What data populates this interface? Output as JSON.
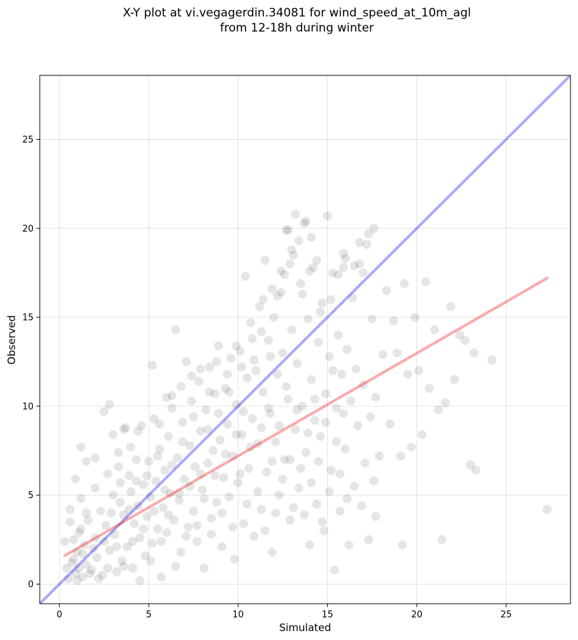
{
  "title": {
    "line1": "X-Y plot at vi.vegagerdin.34081 for wind_speed_at_10m_agl",
    "line2": "from 12-18h during winter"
  },
  "colors": {
    "points": "#000000",
    "identity_line": "#0000ee",
    "regression_line": "#ee0000",
    "grid": "#b0b0b0"
  },
  "chart_data": {
    "type": "scatter",
    "title": "X-Y plot at vi.vegagerdin.34081 for wind_speed_at_10m_agl from 12-18h during winter",
    "xlabel": "Simulated",
    "ylabel": "Observed",
    "xlim": [
      -1.1,
      28.6
    ],
    "ylim": [
      -1.1,
      28.6
    ],
    "x_ticks": [
      0,
      5,
      10,
      15,
      20,
      25
    ],
    "y_ticks": [
      0,
      5,
      10,
      15,
      20,
      25
    ],
    "x_tick_labels": [
      "0",
      "5",
      "10",
      "15",
      "20",
      "25"
    ],
    "y_tick_labels": [
      "0",
      "5",
      "10",
      "15",
      "20",
      "25"
    ],
    "grid": true,
    "legend": "none",
    "lines": [
      {
        "kind": "identity",
        "x": [
          -1.1,
          28.6
        ],
        "y": [
          -1.1,
          28.6
        ]
      },
      {
        "kind": "regression",
        "x": [
          0.3,
          27.3
        ],
        "y": [
          1.6,
          17.2
        ]
      }
    ],
    "points": [
      [
        0.5,
        0.3
      ],
      [
        0.7,
        1.2
      ],
      [
        0.8,
        2.5
      ],
      [
        0.9,
        0.6
      ],
      [
        1.0,
        1.8
      ],
      [
        1.1,
        0.9
      ],
      [
        1.2,
        3.1
      ],
      [
        1.3,
        0.4
      ],
      [
        1.4,
        2.2
      ],
      [
        1.5,
        1.1
      ],
      [
        0.6,
        4.2
      ],
      [
        0.9,
        5.9
      ],
      [
        1.2,
        4.8
      ],
      [
        1.6,
        3.6
      ],
      [
        1.8,
        0.8
      ],
      [
        2.0,
        2.6
      ],
      [
        2.1,
        1.5
      ],
      [
        2.3,
        4.1
      ],
      [
        2.4,
        0.5
      ],
      [
        2.6,
        3.3
      ],
      [
        2.7,
        6.2
      ],
      [
        2.8,
        1.9
      ],
      [
        3.0,
        5.0
      ],
      [
        3.1,
        2.8
      ],
      [
        3.2,
        0.7
      ],
      [
        3.3,
        7.4
      ],
      [
        3.4,
        4.6
      ],
      [
        3.5,
        1.3
      ],
      [
        3.6,
        3.9
      ],
      [
        3.7,
        8.8
      ],
      [
        3.8,
        2.1
      ],
      [
        3.9,
        6.1
      ],
      [
        4.0,
        5.2
      ],
      [
        4.1,
        0.9
      ],
      [
        4.2,
        3.4
      ],
      [
        4.3,
        7.0
      ],
      [
        4.4,
        4.4
      ],
      [
        4.5,
        2.6
      ],
      [
        4.6,
        8.9
      ],
      [
        4.7,
        5.6
      ],
      [
        4.8,
        1.6
      ],
      [
        4.9,
        3.8
      ],
      [
        5.0,
        6.9
      ],
      [
        5.1,
        4.9
      ],
      [
        5.2,
        2.3
      ],
      [
        5.3,
        9.3
      ],
      [
        5.4,
        5.8
      ],
      [
        5.5,
        3.1
      ],
      [
        5.6,
        7.6
      ],
      [
        5.7,
        0.4
      ],
      [
        5.8,
        4.3
      ],
      [
        5.9,
        6.4
      ],
      [
        6.0,
        2.9
      ],
      [
        6.1,
        8.3
      ],
      [
        6.2,
        5.1
      ],
      [
        6.3,
        10.6
      ],
      [
        6.4,
        3.6
      ],
      [
        6.5,
        14.3
      ],
      [
        6.6,
        7.1
      ],
      [
        6.7,
        4.7
      ],
      [
        6.8,
        1.8
      ],
      [
        6.9,
        9.1
      ],
      [
        7.0,
        5.9
      ],
      [
        7.1,
        12.5
      ],
      [
        7.2,
        3.2
      ],
      [
        7.3,
        7.8
      ],
      [
        7.4,
        10.3
      ],
      [
        7.5,
        4.1
      ],
      [
        7.6,
        6.6
      ],
      [
        7.7,
        2.4
      ],
      [
        7.8,
        11.4
      ],
      [
        7.9,
        8.6
      ],
      [
        8.0,
        5.3
      ],
      [
        8.1,
        0.9
      ],
      [
        8.2,
        9.8
      ],
      [
        8.3,
        6.8
      ],
      [
        8.4,
        12.2
      ],
      [
        8.5,
        3.7
      ],
      [
        8.6,
        7.5
      ],
      [
        8.7,
        10.7
      ],
      [
        8.8,
        4.6
      ],
      [
        8.9,
        13.4
      ],
      [
        9.0,
        8.1
      ],
      [
        9.1,
        2.1
      ],
      [
        9.2,
        6.0
      ],
      [
        9.3,
        11.0
      ],
      [
        9.4,
        9.0
      ],
      [
        9.5,
        4.9
      ],
      [
        9.6,
        12.7
      ],
      [
        9.7,
        7.2
      ],
      [
        9.8,
        1.4
      ],
      [
        9.9,
        10.1
      ],
      [
        10.0,
        5.7
      ],
      [
        10.1,
        13.1
      ],
      [
        10.2,
        8.4
      ],
      [
        10.3,
        3.4
      ],
      [
        10.4,
        17.3
      ],
      [
        10.5,
        11.6
      ],
      [
        10.6,
        6.5
      ],
      [
        10.7,
        14.7
      ],
      [
        10.8,
        9.3
      ],
      [
        10.9,
        2.7
      ],
      [
        11.0,
        12.0
      ],
      [
        11.1,
        7.9
      ],
      [
        11.2,
        15.6
      ],
      [
        11.3,
        4.2
      ],
      [
        11.4,
        10.8
      ],
      [
        11.5,
        18.2
      ],
      [
        11.6,
        6.3
      ],
      [
        11.7,
        13.7
      ],
      [
        11.8,
        9.6
      ],
      [
        11.9,
        1.8
      ],
      [
        12.0,
        15.0
      ],
      [
        12.1,
        8.0
      ],
      [
        12.2,
        11.8
      ],
      [
        12.3,
        5.0
      ],
      [
        12.4,
        16.4
      ],
      [
        12.5,
        13.0
      ],
      [
        12.6,
        7.0
      ],
      [
        12.7,
        19.9
      ],
      [
        12.8,
        10.4
      ],
      [
        12.9,
        3.6
      ],
      [
        13.0,
        14.3
      ],
      [
        13.1,
        18.5
      ],
      [
        13.2,
        8.7
      ],
      [
        13.3,
        12.4
      ],
      [
        13.4,
        5.4
      ],
      [
        13.5,
        16.9
      ],
      [
        13.6,
        10.0
      ],
      [
        13.7,
        20.3
      ],
      [
        13.8,
        7.4
      ],
      [
        13.9,
        14.9
      ],
      [
        14.0,
        2.2
      ],
      [
        14.1,
        11.5
      ],
      [
        14.2,
        17.8
      ],
      [
        14.3,
        9.2
      ],
      [
        14.4,
        4.5
      ],
      [
        14.5,
        13.6
      ],
      [
        14.6,
        8.3
      ],
      [
        14.7,
        15.8
      ],
      [
        14.8,
        3.0
      ],
      [
        14.9,
        10.7
      ],
      [
        15.0,
        20.7
      ],
      [
        15.1,
        12.8
      ],
      [
        15.2,
        6.4
      ],
      [
        15.3,
        17.5
      ],
      [
        15.4,
        0.8
      ],
      [
        15.5,
        9.9
      ],
      [
        15.6,
        14.0
      ],
      [
        15.7,
        4.1
      ],
      [
        15.8,
        11.8
      ],
      [
        15.9,
        18.6
      ],
      [
        16.0,
        7.6
      ],
      [
        16.1,
        13.2
      ],
      [
        16.2,
        2.2
      ],
      [
        16.3,
        10.3
      ],
      [
        16.4,
        16.1
      ],
      [
        16.5,
        5.5
      ],
      [
        16.6,
        12.1
      ],
      [
        16.7,
        8.9
      ],
      [
        16.8,
        18.0
      ],
      [
        16.9,
        4.4
      ],
      [
        17.0,
        11.2
      ],
      [
        17.1,
        6.8
      ],
      [
        17.2,
        19.1
      ],
      [
        17.3,
        2.5
      ],
      [
        17.4,
        9.4
      ],
      [
        17.5,
        14.9
      ],
      [
        17.6,
        5.8
      ],
      [
        17.7,
        10.5
      ],
      [
        17.9,
        7.2
      ],
      [
        18.1,
        12.9
      ],
      [
        18.3,
        16.5
      ],
      [
        18.5,
        9.0
      ],
      [
        18.7,
        14.8
      ],
      [
        18.9,
        13.0
      ],
      [
        19.1,
        7.2
      ],
      [
        19.3,
        16.9
      ],
      [
        19.5,
        11.8
      ],
      [
        19.7,
        7.7
      ],
      [
        19.9,
        15.0
      ],
      [
        20.1,
        12.0
      ],
      [
        20.3,
        8.4
      ],
      [
        20.5,
        17.0
      ],
      [
        20.7,
        11.0
      ],
      [
        21.0,
        14.3
      ],
      [
        21.2,
        9.8
      ],
      [
        21.4,
        2.5
      ],
      [
        21.6,
        10.2
      ],
      [
        21.9,
        15.6
      ],
      [
        22.1,
        11.5
      ],
      [
        22.4,
        14.0
      ],
      [
        22.7,
        13.7
      ],
      [
        23.0,
        6.7
      ],
      [
        23.2,
        13.0
      ],
      [
        23.3,
        6.4
      ],
      [
        24.2,
        12.6
      ],
      [
        27.3,
        4.2
      ],
      [
        19.2,
        2.2
      ],
      [
        17.7,
        3.8
      ],
      [
        0.3,
        2.4
      ],
      [
        0.4,
        0.9
      ],
      [
        0.6,
        3.5
      ],
      [
        0.8,
        1.4
      ],
      [
        1.0,
        0.2
      ],
      [
        1.1,
        2.9
      ],
      [
        1.3,
        1.7
      ],
      [
        1.5,
        4.0
      ],
      [
        1.7,
        0.6
      ],
      [
        1.9,
        2.0
      ],
      [
        2.0,
        5.4
      ],
      [
        2.2,
        0.3
      ],
      [
        2.5,
        2.4
      ],
      [
        2.7,
        0.9
      ],
      [
        2.9,
        4.0
      ],
      [
        3.2,
        2.1
      ],
      [
        3.4,
        5.7
      ],
      [
        3.6,
        1.0
      ],
      [
        3.9,
        4.2
      ],
      [
        4.1,
        2.4
      ],
      [
        4.3,
        5.8
      ],
      [
        4.5,
        0.2
      ],
      [
        4.7,
        3.1
      ],
      [
        4.9,
        6.1
      ],
      [
        5.1,
        1.3
      ],
      [
        5.3,
        4.1
      ],
      [
        5.5,
        7.2
      ],
      [
        5.7,
        2.4
      ],
      [
        5.9,
        5.3
      ],
      [
        6.1,
        3.9
      ],
      [
        6.3,
        6.7
      ],
      [
        6.5,
        1.0
      ],
      [
        6.7,
        5.1
      ],
      [
        6.9,
        8.0
      ],
      [
        7.1,
        2.7
      ],
      [
        7.3,
        5.5
      ],
      [
        7.5,
        9.4
      ],
      [
        7.7,
        3.3
      ],
      [
        7.9,
        6.2
      ],
      [
        8.1,
        4.8
      ],
      [
        8.3,
        8.7
      ],
      [
        8.5,
        2.8
      ],
      [
        8.7,
        6.1
      ],
      [
        8.9,
        9.6
      ],
      [
        9.1,
        4.0
      ],
      [
        9.3,
        7.3
      ],
      [
        9.5,
        10.8
      ],
      [
        9.7,
        3.2
      ],
      [
        9.9,
        8.4
      ],
      [
        10.1,
        6.2
      ],
      [
        10.3,
        9.7
      ],
      [
        10.5,
        4.5
      ],
      [
        10.7,
        7.7
      ],
      [
        10.9,
        12.6
      ],
      [
        11.1,
        5.2
      ],
      [
        11.3,
        8.8
      ],
      [
        11.5,
        3.0
      ],
      [
        11.7,
        9.9
      ],
      [
        11.9,
        6.9
      ],
      [
        12.1,
        4.0
      ],
      [
        12.3,
        8.9
      ],
      [
        12.5,
        5.9
      ],
      [
        12.7,
        11.1
      ],
      [
        12.9,
        7.0
      ],
      [
        13.1,
        4.3
      ],
      [
        13.3,
        9.8
      ],
      [
        13.5,
        6.5
      ],
      [
        13.7,
        3.9
      ],
      [
        13.9,
        8.5
      ],
      [
        14.1,
        5.7
      ],
      [
        14.3,
        10.4
      ],
      [
        14.5,
        6.9
      ],
      [
        14.7,
        3.5
      ],
      [
        14.9,
        9.1
      ],
      [
        15.1,
        5.2
      ],
      [
        15.3,
        12.0
      ],
      [
        15.5,
        8.0
      ],
      [
        15.7,
        6.2
      ],
      [
        15.9,
        9.6
      ],
      [
        16.1,
        4.8
      ],
      [
        1.2,
        7.7
      ],
      [
        1.5,
        6.9
      ],
      [
        2.0,
        7.1
      ],
      [
        2.5,
        9.7
      ],
      [
        2.8,
        10.1
      ],
      [
        3.0,
        8.4
      ],
      [
        3.3,
        6.6
      ],
      [
        3.6,
        8.7
      ],
      [
        4.0,
        7.7
      ],
      [
        4.4,
        8.6
      ],
      [
        5.2,
        12.3
      ],
      [
        5.6,
        9.0
      ],
      [
        6.0,
        10.5
      ],
      [
        6.3,
        9.9
      ],
      [
        6.8,
        11.1
      ],
      [
        7.4,
        11.7
      ],
      [
        7.9,
        12.1
      ],
      [
        8.4,
        10.8
      ],
      [
        8.8,
        12.5
      ],
      [
        9.4,
        11.8
      ],
      [
        9.9,
        13.4
      ],
      [
        10.2,
        12.2
      ],
      [
        10.8,
        13.8
      ],
      [
        11.3,
        14.2
      ],
      [
        11.8,
        12.8
      ],
      [
        12.2,
        16.2
      ],
      [
        12.6,
        17.4
      ],
      [
        13.0,
        18.8
      ],
      [
        13.2,
        20.8
      ],
      [
        13.4,
        19.3
      ],
      [
        12.8,
        19.9
      ],
      [
        13.6,
        16.3
      ],
      [
        14.0,
        17.6
      ],
      [
        14.4,
        18.2
      ],
      [
        14.6,
        15.3
      ],
      [
        15.2,
        16.0
      ],
      [
        15.6,
        17.4
      ],
      [
        16.0,
        18.3
      ],
      [
        16.5,
        17.9
      ],
      [
        17.0,
        17.5
      ],
      [
        17.3,
        19.7
      ],
      [
        17.6,
        20.0
      ],
      [
        16.8,
        19.2
      ],
      [
        15.9,
        17.8
      ],
      [
        14.1,
        19.5
      ],
      [
        13.8,
        20.4
      ],
      [
        12.9,
        18.0
      ],
      [
        12.4,
        17.6
      ],
      [
        11.9,
        16.6
      ],
      [
        11.4,
        16.0
      ]
    ]
  }
}
